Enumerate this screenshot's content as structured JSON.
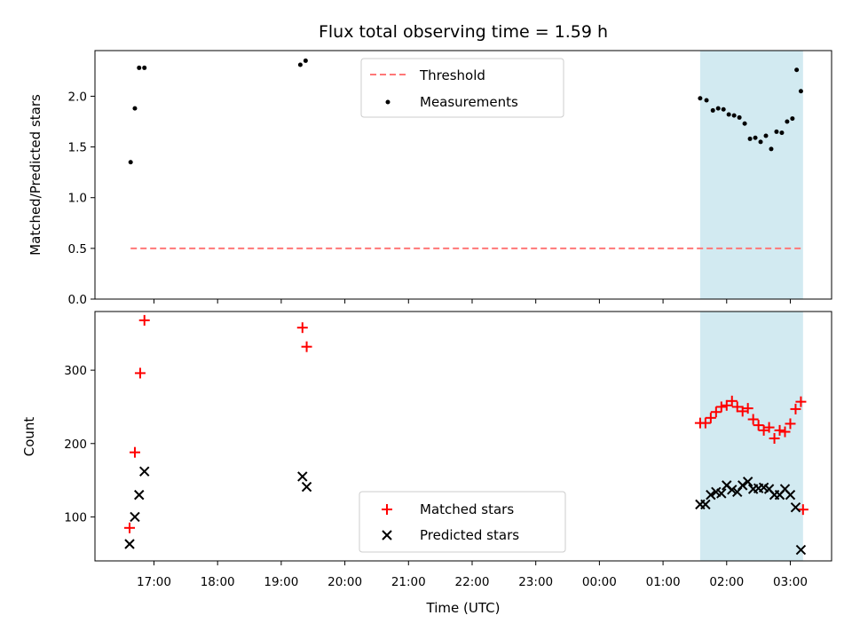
{
  "chart_data": [
    {
      "type": "scatter",
      "title": "Flux total observing time = 1.59 h",
      "xlabel": "",
      "ylabel": "Matched/Predicted stars",
      "ylim": [
        0,
        2.45
      ],
      "yticks": [
        "0.0",
        "0.5",
        "1.0",
        "1.5",
        "2.0"
      ],
      "grid": false,
      "legend_position": "top-center",
      "threshold": {
        "name": "Threshold",
        "value": 0.5,
        "x_start": "16:38",
        "x_end": "03:10",
        "color": "#ff7777",
        "style": "dashed"
      },
      "series": [
        {
          "name": "Measurements",
          "color": "#000000",
          "marker": "dot",
          "x": [
            "16:38",
            "16:42",
            "16:46",
            "16:51",
            "19:18",
            "19:23",
            "01:35",
            "01:41",
            "01:47",
            "01:52",
            "01:57",
            "02:02",
            "02:07",
            "02:12",
            "02:17",
            "02:22",
            "02:27",
            "02:32",
            "02:37",
            "02:42",
            "02:47",
            "02:52",
            "02:57",
            "03:02",
            "03:06",
            "03:10"
          ],
          "y": [
            1.35,
            1.88,
            2.28,
            2.28,
            2.31,
            2.35,
            1.98,
            1.96,
            1.86,
            1.88,
            1.87,
            1.82,
            1.81,
            1.79,
            1.73,
            1.58,
            1.59,
            1.55,
            1.61,
            1.48,
            1.65,
            1.64,
            1.75,
            1.78,
            2.26,
            2.05
          ]
        }
      ],
      "highlight": {
        "x_start": "01:35",
        "x_end": "03:12",
        "color": "#add8e6"
      }
    },
    {
      "type": "scatter",
      "title": "",
      "xlabel": "Time (UTC)",
      "ylabel": "Count",
      "ylim": [
        40,
        380
      ],
      "yticks": [
        "100",
        "200",
        "300"
      ],
      "xticks": [
        "17:00",
        "18:00",
        "19:00",
        "20:00",
        "21:00",
        "22:00",
        "23:00",
        "00:00",
        "01:00",
        "02:00",
        "03:00"
      ],
      "grid": false,
      "legend_position": "lower-center",
      "series": [
        {
          "name": "Matched stars",
          "color": "#ff0000",
          "marker": "plus",
          "x": [
            "16:37",
            "16:42",
            "16:47",
            "16:51",
            "19:20",
            "19:24",
            "01:35",
            "01:40",
            "01:45",
            "01:50",
            "01:55",
            "02:00",
            "02:05",
            "02:10",
            "02:15",
            "02:20",
            "02:25",
            "02:30",
            "02:35",
            "02:40",
            "02:45",
            "02:50",
            "02:55",
            "03:00",
            "03:05",
            "03:10"
          ],
          "y": [
            85,
            188,
            296,
            368,
            358,
            332,
            228,
            228,
            235,
            243,
            250,
            252,
            258,
            250,
            244,
            248,
            233,
            225,
            218,
            222,
            207,
            218,
            216,
            227,
            247,
            257
          ]
        },
        {
          "name": "Predicted stars",
          "color": "#000000",
          "marker": "x",
          "x": [
            "16:37",
            "16:42",
            "16:46",
            "16:51",
            "19:20",
            "19:24",
            "01:35",
            "01:40",
            "01:45",
            "01:50",
            "01:55",
            "02:00",
            "02:05",
            "02:10",
            "02:15",
            "02:20",
            "02:25",
            "02:30",
            "02:35",
            "02:40",
            "02:45",
            "02:50",
            "02:55",
            "03:00",
            "03:05",
            "03:10"
          ],
          "y": [
            63,
            100,
            130,
            162,
            155,
            141,
            117,
            117,
            130,
            134,
            132,
            143,
            137,
            134,
            143,
            148,
            138,
            139,
            140,
            138,
            130,
            130,
            138,
            130,
            113,
            55
          ]
        }
      ],
      "extra_points": [
        {
          "series": "Matched stars",
          "x": "03:12",
          "y": 110
        }
      ],
      "highlight": {
        "x_start": "01:35",
        "x_end": "03:12",
        "color": "#add8e6"
      }
    }
  ]
}
